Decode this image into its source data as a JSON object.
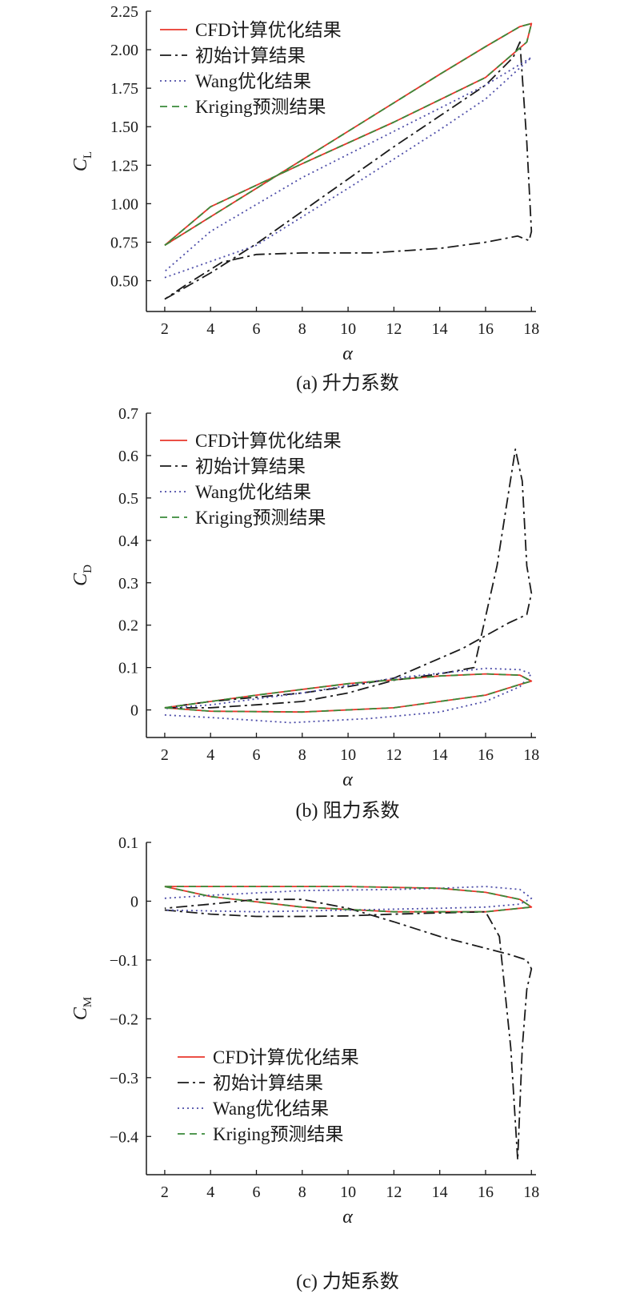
{
  "chart_data": [
    {
      "type": "line",
      "panel": "a",
      "caption": "(a) 升力系数",
      "xlabel": "α",
      "ylabel": "C",
      "ylabel_sub": "L",
      "xlim": [
        1.2,
        18.2
      ],
      "ylim": [
        0.3,
        2.25
      ],
      "xticks": [
        2,
        4,
        6,
        8,
        10,
        12,
        14,
        16,
        18
      ],
      "yticks": [
        0.5,
        0.75,
        1.0,
        1.25,
        1.5,
        1.75,
        2.0,
        2.25
      ],
      "ytick_labels": [
        "0.50",
        "0.75",
        "1.00",
        "1.25",
        "1.50",
        "1.75",
        "2.00",
        "2.25"
      ],
      "legend": {
        "position": "top-left"
      },
      "series": [
        {
          "name": "CFD计算优化结果",
          "color": "#e8372c",
          "dash": "solid",
          "x": [
            2,
            6,
            10,
            14,
            16,
            17.5,
            18,
            17.8,
            16,
            12,
            8,
            4,
            2
          ],
          "y": [
            0.73,
            1.1,
            1.47,
            1.84,
            2.02,
            2.15,
            2.17,
            2.05,
            1.82,
            1.53,
            1.26,
            0.98,
            0.73
          ]
        },
        {
          "name": "初始计算结果",
          "color": "#1a1a1a",
          "dash": "dashdot",
          "x": [
            2,
            4,
            6,
            8,
            10,
            12,
            14,
            16,
            17.2,
            17.5,
            17.8,
            18,
            17.9,
            17.4,
            16,
            14,
            12,
            11,
            8,
            6,
            4.5,
            3,
            2
          ],
          "y": [
            0.38,
            0.55,
            0.74,
            0.95,
            1.16,
            1.37,
            1.57,
            1.77,
            1.95,
            2.05,
            1.4,
            0.82,
            0.76,
            0.79,
            0.75,
            0.71,
            0.69,
            0.68,
            0.68,
            0.67,
            0.62,
            0.48,
            0.38
          ]
        },
        {
          "name": "Wang优化结果",
          "color": "#4c4ca8",
          "dash": "dotted",
          "x": [
            2,
            6,
            10,
            14,
            16,
            18,
            16,
            12,
            8,
            4,
            2
          ],
          "y": [
            0.52,
            0.73,
            1.1,
            1.48,
            1.68,
            1.95,
            1.77,
            1.47,
            1.17,
            0.82,
            0.56
          ]
        },
        {
          "name": "Kriging预测结果",
          "color": "#3a8a3a",
          "dash": "dashed",
          "x": [
            2,
            6,
            10,
            14,
            16,
            17.5,
            18,
            17.8,
            16,
            12,
            8,
            4,
            2
          ],
          "y": [
            0.73,
            1.1,
            1.47,
            1.84,
            2.02,
            2.15,
            2.17,
            2.05,
            1.82,
            1.53,
            1.26,
            0.98,
            0.73
          ]
        }
      ]
    },
    {
      "type": "line",
      "panel": "b",
      "caption": "(b) 阻力系数",
      "xlabel": "α",
      "ylabel": "C",
      "ylabel_sub": "D",
      "xlim": [
        1.2,
        18.2
      ],
      "ylim": [
        -0.065,
        0.7
      ],
      "xticks": [
        2,
        4,
        6,
        8,
        10,
        12,
        14,
        16,
        18
      ],
      "yticks": [
        0,
        0.1,
        0.2,
        0.3,
        0.4,
        0.5,
        0.6,
        0.7
      ],
      "ytick_labels": [
        "0",
        "0.1",
        "0.2",
        "0.3",
        "0.4",
        "0.5",
        "0.6",
        "0.7"
      ],
      "legend": {
        "position": "top-left"
      },
      "series": [
        {
          "name": "CFD计算优化结果",
          "color": "#e8372c",
          "dash": "solid",
          "x": [
            2,
            6,
            10,
            14,
            16,
            17.5,
            18,
            17.5,
            16,
            12,
            8,
            4,
            2
          ],
          "y": [
            0.005,
            0.035,
            0.062,
            0.08,
            0.085,
            0.082,
            0.068,
            0.06,
            0.035,
            0.005,
            -0.005,
            -0.003,
            0.005
          ]
        },
        {
          "name": "初始计算结果",
          "color": "#1a1a1a",
          "dash": "dashdot",
          "x": [
            2,
            4,
            6,
            8,
            10,
            12,
            14,
            15.5,
            16.5,
            17.3,
            17.6,
            17.8,
            18,
            17.8,
            17,
            15,
            12,
            10,
            8,
            6,
            4,
            2
          ],
          "y": [
            0.005,
            0.005,
            0.012,
            0.02,
            0.04,
            0.07,
            0.085,
            0.1,
            0.34,
            0.615,
            0.54,
            0.34,
            0.275,
            0.225,
            0.205,
            0.145,
            0.075,
            0.055,
            0.04,
            0.03,
            0.02,
            0.005
          ]
        },
        {
          "name": "Wang优化结果",
          "color": "#4c4ca8",
          "dash": "dotted",
          "x": [
            2,
            4,
            7.5,
            11,
            14,
            16,
            17.5,
            18,
            17.5,
            16,
            12,
            8,
            4,
            2
          ],
          "y": [
            -0.012,
            -0.018,
            -0.03,
            -0.02,
            -0.005,
            0.02,
            0.055,
            0.085,
            0.095,
            0.098,
            0.075,
            0.04,
            0.012,
            0.003
          ]
        },
        {
          "name": "Kriging预测结果",
          "color": "#3a8a3a",
          "dash": "dashed",
          "x": [
            2,
            6,
            10,
            14,
            16,
            17.5,
            18,
            17.5,
            16,
            12,
            8,
            4,
            2
          ],
          "y": [
            0.005,
            0.035,
            0.062,
            0.08,
            0.085,
            0.082,
            0.068,
            0.06,
            0.035,
            0.005,
            -0.005,
            -0.003,
            0.005
          ]
        }
      ]
    },
    {
      "type": "line",
      "panel": "c",
      "caption": "(c) 力矩系数",
      "xlabel": "α",
      "ylabel": "C",
      "ylabel_sub": "M",
      "xlim": [
        1.2,
        18.2
      ],
      "ylim": [
        -0.465,
        0.1
      ],
      "xticks": [
        2,
        4,
        6,
        8,
        10,
        12,
        14,
        16,
        18
      ],
      "yticks": [
        0.1,
        0,
        -0.1,
        -0.2,
        -0.3,
        -0.4
      ],
      "ytick_labels": [
        "0.1",
        "0",
        "−0.1",
        "−0.2",
        "−0.3",
        "−0.4"
      ],
      "legend": {
        "position": "bottom-left"
      },
      "series": [
        {
          "name": "CFD计算优化结果",
          "color": "#e8372c",
          "dash": "solid",
          "x": [
            2,
            6,
            10,
            14,
            16,
            17.5,
            18,
            16,
            12,
            8,
            4,
            2
          ],
          "y": [
            0.025,
            0.025,
            0.025,
            0.022,
            0.015,
            0.003,
            -0.01,
            -0.018,
            -0.018,
            -0.01,
            0.008,
            0.025
          ]
        },
        {
          "name": "初始计算结果",
          "color": "#1a1a1a",
          "dash": "dashdot",
          "x": [
            2,
            4,
            6,
            8,
            10,
            12,
            14,
            16,
            16.6,
            17.1,
            17.4,
            17.6,
            17.8,
            18,
            17.8,
            17,
            14,
            12,
            10,
            8,
            6,
            4,
            2
          ],
          "y": [
            -0.015,
            -0.022,
            -0.026,
            -0.026,
            -0.025,
            -0.022,
            -0.02,
            -0.018,
            -0.06,
            -0.25,
            -0.44,
            -0.25,
            -0.15,
            -0.115,
            -0.1,
            -0.09,
            -0.06,
            -0.035,
            -0.012,
            0.003,
            0.003,
            -0.005,
            -0.012
          ]
        },
        {
          "name": "Wang优化结果",
          "color": "#4c4ca8",
          "dash": "dotted",
          "x": [
            2,
            4,
            8,
            12,
            14,
            16,
            17.5,
            18,
            17.5,
            16,
            14,
            10,
            6,
            2
          ],
          "y": [
            0.005,
            0.01,
            0.018,
            0.02,
            0.022,
            0.025,
            0.02,
            0.005,
            -0.005,
            -0.01,
            -0.012,
            -0.015,
            -0.018,
            -0.015
          ]
        },
        {
          "name": "Kriging预测结果",
          "color": "#3a8a3a",
          "dash": "dashed",
          "x": [
            2,
            6,
            10,
            14,
            16,
            17.5,
            18,
            16,
            12,
            8,
            4,
            2
          ],
          "y": [
            0.025,
            0.025,
            0.025,
            0.022,
            0.015,
            0.003,
            -0.01,
            -0.018,
            -0.018,
            -0.01,
            0.008,
            0.025
          ]
        }
      ]
    }
  ]
}
